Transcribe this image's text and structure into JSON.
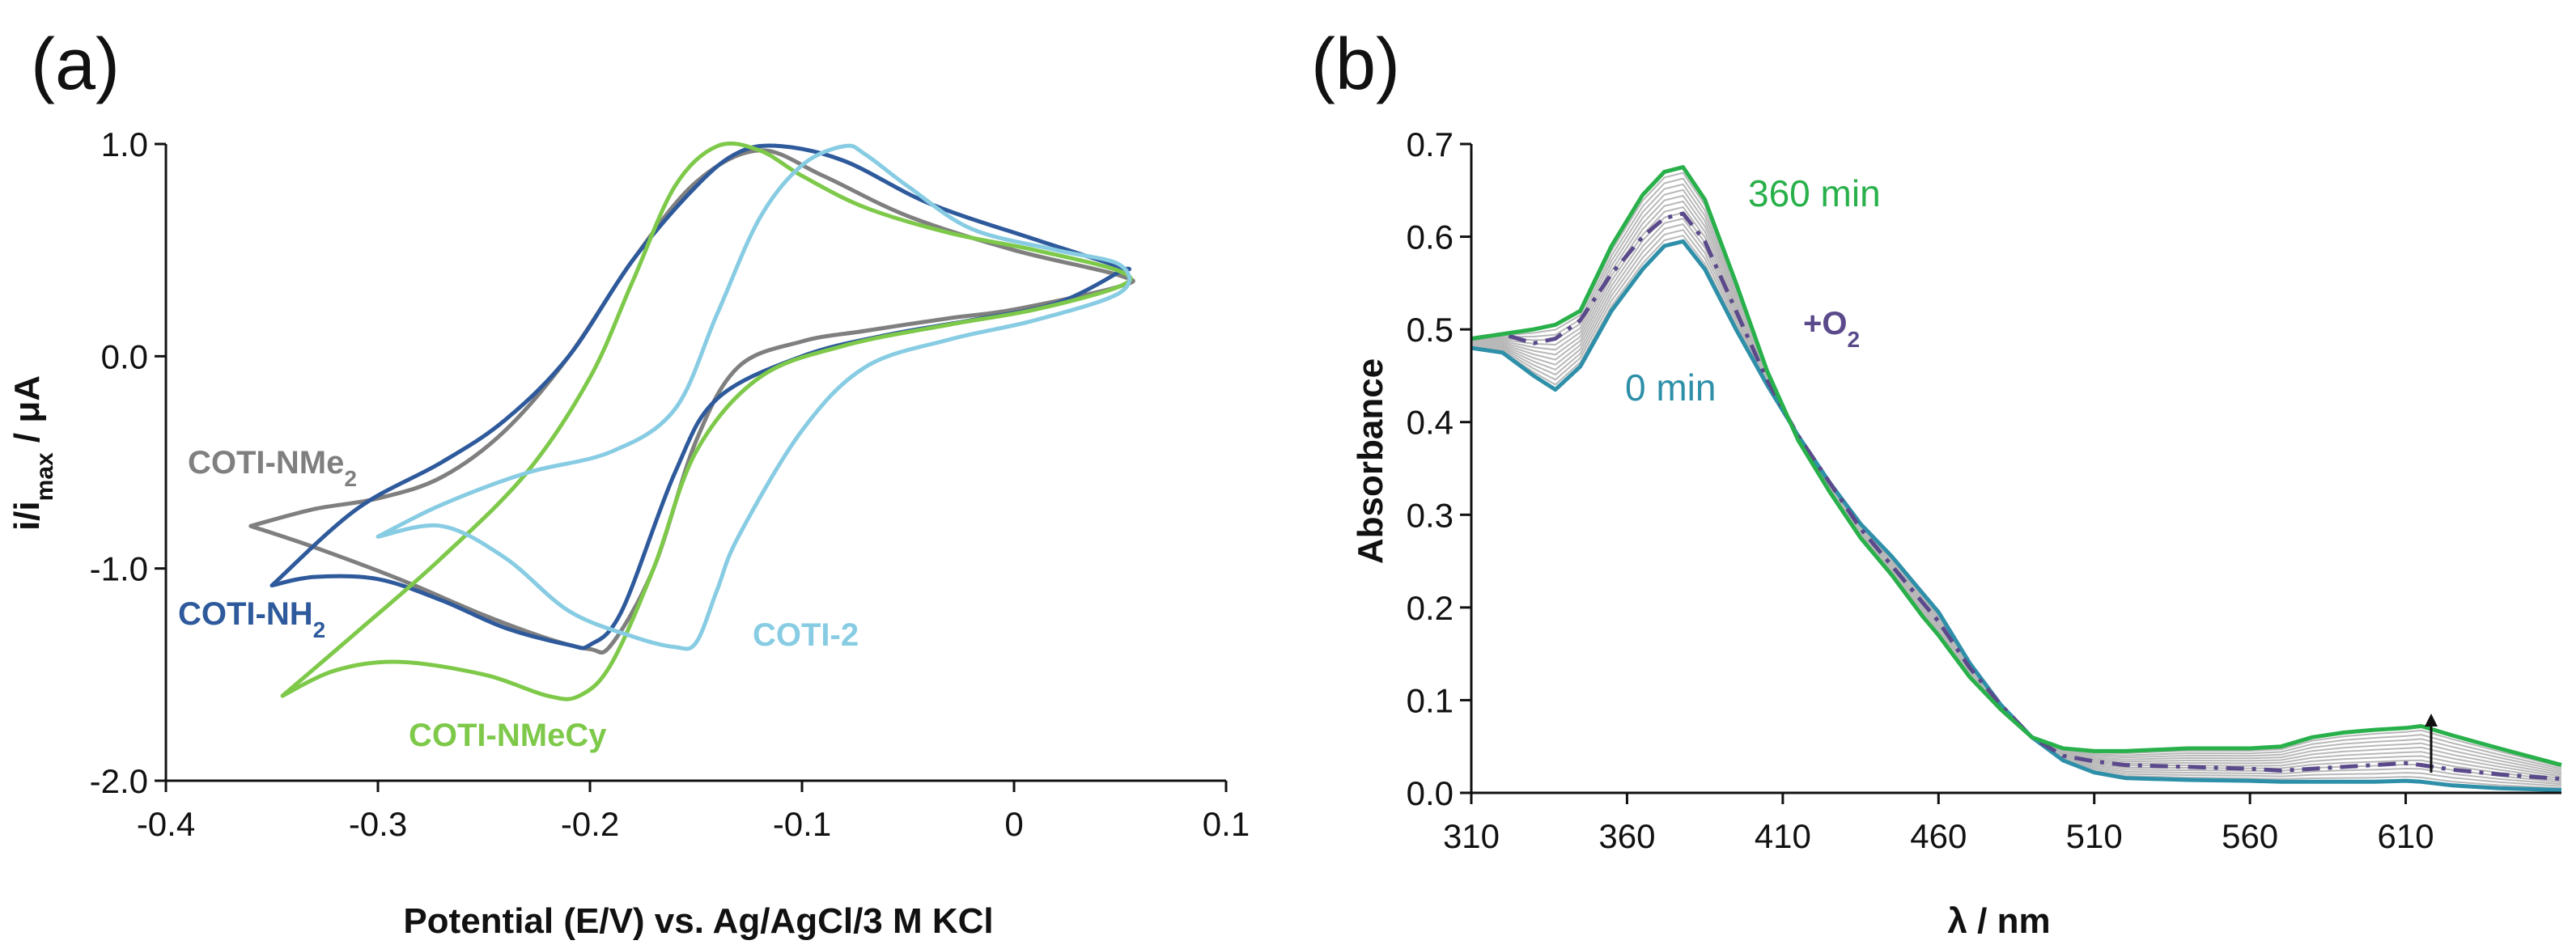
{
  "chart_data": [
    {
      "panel": "(a)",
      "type": "line",
      "xlabel": "Potential (E/V) vs. Ag/AgCl/3 M KCl",
      "ylabel_main": "i/i",
      "ylabel_sub": "max",
      "ylabel_rest": " / μA",
      "xlim": [
        -0.4,
        0.1
      ],
      "ylim": [
        -2.0,
        1.0
      ],
      "xticks": [
        "-0.4",
        "-0.3",
        "-0.2",
        "-0.1",
        "0",
        "0.1"
      ],
      "yticks": [
        "1.0",
        "0.0",
        "-1.0",
        "-2.0"
      ],
      "series": [
        {
          "name": "COTI-NMe2",
          "label_main": "COTI-NMe",
          "label_sub": "2",
          "color": "#7f7f7f",
          "x": [
            -0.36,
            -0.33,
            -0.29,
            -0.25,
            -0.22,
            -0.2,
            -0.19,
            -0.17,
            -0.15,
            -0.13,
            -0.1,
            -0.07,
            -0.03,
            0.0,
            0.05,
            0.05,
            0.0,
            -0.05,
            -0.09,
            -0.12,
            -0.15,
            -0.18,
            -0.21,
            -0.24,
            -0.27,
            -0.3,
            -0.33,
            -0.36
          ],
          "y": [
            -0.8,
            -0.9,
            -1.05,
            -1.22,
            -1.33,
            -1.38,
            -1.36,
            -1.0,
            -0.4,
            -0.05,
            0.07,
            0.12,
            0.18,
            0.22,
            0.33,
            0.38,
            0.5,
            0.66,
            0.85,
            0.97,
            0.82,
            0.45,
            0.0,
            -0.35,
            -0.57,
            -0.67,
            -0.72,
            -0.8
          ]
        },
        {
          "name": "COTI-NH2",
          "label_main": "COTI-NH",
          "label_sub": "2",
          "color": "#2e5a9c",
          "x": [
            -0.35,
            -0.33,
            -0.3,
            -0.27,
            -0.24,
            -0.21,
            -0.2,
            -0.185,
            -0.16,
            -0.14,
            -0.1,
            -0.06,
            -0.02,
            0.02,
            0.05,
            0.05,
            0.01,
            -0.04,
            -0.08,
            -0.11,
            -0.13,
            -0.15,
            -0.18,
            -0.21,
            -0.24,
            -0.27,
            -0.31,
            -0.35
          ],
          "y": [
            -1.08,
            -1.04,
            -1.05,
            -1.15,
            -1.28,
            -1.36,
            -1.36,
            -1.2,
            -0.55,
            -0.2,
            0.0,
            0.1,
            0.17,
            0.25,
            0.4,
            0.42,
            0.55,
            0.72,
            0.92,
            0.99,
            0.96,
            0.8,
            0.45,
            0.0,
            -0.3,
            -0.5,
            -0.72,
            -1.08
          ]
        },
        {
          "name": "COTI-NMeCy",
          "label_main": "COTI-NMeCy",
          "label_sub": "",
          "color": "#7ec94a",
          "x": [
            -0.345,
            -0.32,
            -0.29,
            -0.25,
            -0.22,
            -0.205,
            -0.19,
            -0.17,
            -0.15,
            -0.12,
            -0.08,
            -0.03,
            0.01,
            0.05,
            0.05,
            0.01,
            -0.03,
            -0.07,
            -0.1,
            -0.12,
            -0.14,
            -0.16,
            -0.18,
            -0.2,
            -0.23,
            -0.27,
            -0.31,
            -0.345
          ],
          "y": [
            -1.6,
            -1.48,
            -1.44,
            -1.5,
            -1.6,
            -1.6,
            -1.45,
            -1.0,
            -0.45,
            -0.1,
            0.05,
            0.15,
            0.22,
            0.33,
            0.4,
            0.5,
            0.58,
            0.7,
            0.85,
            0.97,
            0.99,
            0.8,
            0.35,
            -0.1,
            -0.55,
            -0.95,
            -1.3,
            -1.6
          ]
        },
        {
          "name": "COTI-2",
          "label_main": "COTI-2",
          "label_sub": "",
          "color": "#87cce3",
          "x": [
            -0.3,
            -0.27,
            -0.24,
            -0.21,
            -0.18,
            -0.16,
            -0.15,
            -0.14,
            -0.13,
            -0.1,
            -0.07,
            -0.03,
            0.01,
            0.05,
            0.05,
            0.02,
            -0.02,
            -0.05,
            -0.07,
            -0.08,
            -0.1,
            -0.12,
            -0.14,
            -0.16,
            -0.19,
            -0.23,
            -0.27,
            -0.3
          ],
          "y": [
            -0.85,
            -0.8,
            -0.95,
            -1.2,
            -1.32,
            -1.37,
            -1.35,
            -1.1,
            -0.85,
            -0.35,
            -0.05,
            0.08,
            0.17,
            0.3,
            0.43,
            0.5,
            0.6,
            0.8,
            0.95,
            0.99,
            0.9,
            0.65,
            0.2,
            -0.25,
            -0.45,
            -0.55,
            -0.7,
            -0.85
          ]
        }
      ]
    },
    {
      "panel": "(b)",
      "type": "line",
      "xlabel": "λ / nm",
      "ylabel": "Absorbance",
      "xlim": [
        310,
        660
      ],
      "ylim": [
        0.0,
        0.7
      ],
      "xticks": [
        "310",
        "360",
        "410",
        "460",
        "510",
        "560",
        "610"
      ],
      "yticks": [
        "0.7",
        "0.6",
        "0.5",
        "0.4",
        "0.3",
        "0.2",
        "0.1",
        "0.0"
      ],
      "x": [
        310,
        320,
        330,
        337,
        345,
        355,
        365,
        372,
        378,
        385,
        395,
        405,
        415,
        425,
        435,
        445,
        455,
        460,
        470,
        480,
        490,
        500,
        510,
        520,
        540,
        560,
        570,
        580,
        590,
        600,
        610,
        615,
        625,
        640,
        660
      ],
      "series": [
        {
          "name": "0 min",
          "color": "#2e8fa8",
          "values": [
            0.48,
            0.475,
            0.45,
            0.435,
            0.46,
            0.52,
            0.565,
            0.59,
            0.595,
            0.565,
            0.5,
            0.44,
            0.385,
            0.335,
            0.29,
            0.255,
            0.215,
            0.195,
            0.14,
            0.095,
            0.06,
            0.035,
            0.022,
            0.016,
            0.014,
            0.013,
            0.012,
            0.012,
            0.012,
            0.012,
            0.013,
            0.012,
            0.008,
            0.005,
            0.003
          ]
        },
        {
          "name": "+O2",
          "color": "#5b4a8b",
          "dashed": true,
          "values": [
            0.49,
            0.495,
            0.485,
            0.49,
            0.51,
            0.56,
            0.6,
            0.62,
            0.625,
            0.595,
            0.52,
            0.445,
            0.385,
            0.335,
            0.285,
            0.245,
            0.205,
            0.185,
            0.135,
            0.095,
            0.06,
            0.04,
            0.034,
            0.03,
            0.028,
            0.026,
            0.024,
            0.026,
            0.028,
            0.03,
            0.032,
            0.03,
            0.025,
            0.02,
            0.015
          ]
        },
        {
          "name": "360 min",
          "color": "#28b04a",
          "values": [
            0.49,
            0.495,
            0.5,
            0.505,
            0.52,
            0.59,
            0.645,
            0.67,
            0.675,
            0.64,
            0.55,
            0.455,
            0.38,
            0.325,
            0.275,
            0.235,
            0.19,
            0.17,
            0.125,
            0.09,
            0.06,
            0.048,
            0.045,
            0.045,
            0.048,
            0.048,
            0.05,
            0.06,
            0.065,
            0.068,
            0.07,
            0.072,
            0.062,
            0.048,
            0.03
          ]
        }
      ],
      "annotations": {
        "label_360": "360 min",
        "label_0": "0 min",
        "label_o2_main": "+O",
        "label_o2_sub": "2"
      },
      "grey_traces": 12
    }
  ],
  "colors": {
    "axis": "#111111",
    "grey": "#b8b8b8",
    "o2_label": "#5b4a8b",
    "label_360": "#28b04a",
    "label_0": "#2e8fa8"
  }
}
